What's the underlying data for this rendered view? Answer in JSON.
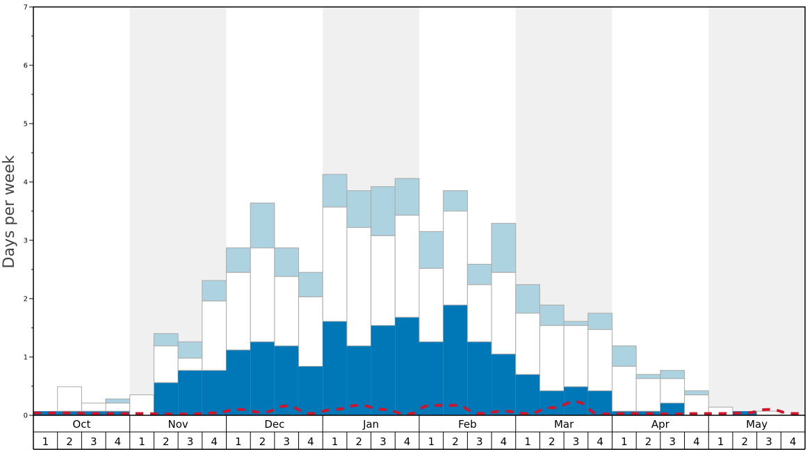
{
  "chart_data": {
    "type": "bar",
    "ylabel": "Days per week",
    "ylim": [
      0,
      7
    ],
    "y_ticks": [
      "0",
      "1",
      "2",
      "3",
      "4",
      "5",
      "6",
      "7"
    ],
    "months": [
      "Oct",
      "Nov",
      "Dec",
      "Jan",
      "Feb",
      "Mar",
      "Apr",
      "May"
    ],
    "weeks": [
      "1",
      "2",
      "3",
      "4"
    ],
    "series": [
      {
        "color": "#0077b6",
        "values": [
          0.07,
          0.07,
          0.07,
          0.07,
          0.0,
          0.56,
          0.77,
          0.77,
          1.12,
          1.26,
          1.19,
          0.84,
          1.61,
          1.19,
          1.54,
          1.68,
          1.26,
          1.89,
          1.26,
          1.05,
          0.7,
          0.42,
          0.49,
          0.42,
          0.07,
          0.07,
          0.21,
          0.0,
          0.0,
          0.07,
          0.0,
          0.0
        ]
      },
      {
        "color": "#ffffff",
        "values": [
          0.0,
          0.42,
          0.14,
          0.14,
          0.35,
          0.63,
          0.21,
          1.19,
          1.33,
          1.61,
          1.19,
          1.19,
          1.96,
          2.03,
          1.54,
          1.75,
          1.26,
          1.61,
          0.98,
          1.4,
          1.05,
          1.12,
          1.05,
          1.05,
          0.77,
          0.56,
          0.42,
          0.35,
          0.14,
          0.0,
          0.07,
          0.0
        ]
      },
      {
        "color": "#add3e0",
        "values": [
          0.0,
          0.0,
          0.0,
          0.07,
          0.0,
          0.21,
          0.28,
          0.35,
          0.42,
          0.77,
          0.49,
          0.42,
          0.56,
          0.63,
          0.84,
          0.63,
          0.63,
          0.35,
          0.35,
          0.84,
          0.49,
          0.35,
          0.07,
          0.28,
          0.35,
          0.07,
          0.14,
          0.07,
          0.0,
          0.0,
          0.0,
          0.0
        ]
      }
    ],
    "dashed_line": {
      "color": "#d0142c",
      "values": [
        0.04,
        0.04,
        0.03,
        0.03,
        0.03,
        0.02,
        0.02,
        0.04,
        0.1,
        0.05,
        0.16,
        0.03,
        0.1,
        0.17,
        0.1,
        0.02,
        0.17,
        0.17,
        0.03,
        0.07,
        0.03,
        0.13,
        0.23,
        0.02,
        0.03,
        0.03,
        0.02,
        0.03,
        0.03,
        0.04,
        0.1,
        0.03
      ]
    },
    "month_shading": [
      "#ffffff",
      "#f0f0f0",
      "#ffffff",
      "#f0f0f0",
      "#ffffff",
      "#f0f0f0",
      "#ffffff",
      "#f0f0f0"
    ]
  }
}
